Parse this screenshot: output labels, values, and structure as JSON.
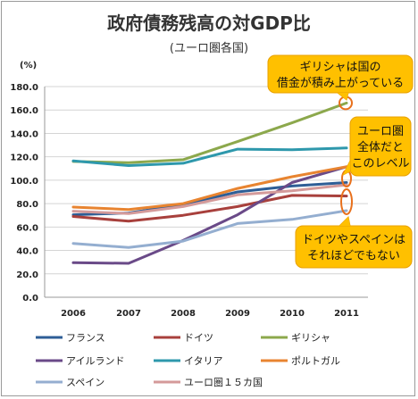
{
  "chart_data": {
    "type": "line",
    "title": "政府債務残高の対GDP比",
    "subtitle": "(ユーロ圏各国)",
    "ylabel": "(%)",
    "ylim": [
      0,
      180
    ],
    "yticks": [
      "0.0",
      "20.0",
      "40.0",
      "60.0",
      "80.0",
      "100.0",
      "120.0",
      "140.0",
      "160.0",
      "180.0"
    ],
    "categories": [
      "2006",
      "2007",
      "2008",
      "2009",
      "2010",
      "2011"
    ],
    "grid": true,
    "legend_position": "bottom",
    "series": [
      {
        "name": "フランス",
        "color": "#2e5e96",
        "values": [
          70.5,
          72.0,
          79.0,
          90.0,
          95.0,
          98.0
        ]
      },
      {
        "name": "ドイツ",
        "color": "#a8403c",
        "values": [
          69.0,
          65.0,
          70.0,
          77.5,
          87.0,
          86.5
        ]
      },
      {
        "name": "ギリシャ",
        "color": "#8ca84c",
        "values": [
          116.0,
          115.0,
          117.5,
          133.0,
          149.0,
          166.0
        ]
      },
      {
        "name": "アイルランド",
        "color": "#6a4a88",
        "values": [
          29.5,
          29.0,
          48.5,
          70.5,
          98.0,
          111.5
        ]
      },
      {
        "name": "イタリア",
        "color": "#2e98ac",
        "values": [
          116.5,
          112.5,
          114.5,
          126.5,
          126.0,
          127.5
        ]
      },
      {
        "name": "ポルトガル",
        "color": "#e88430",
        "values": [
          77.0,
          75.0,
          80.0,
          93.0,
          103.0,
          111.5
        ]
      },
      {
        "name": "スペイン",
        "color": "#94aed0",
        "values": [
          46.0,
          42.5,
          48.0,
          63.0,
          66.5,
          74.0
        ]
      },
      {
        "name": "ユーロ圏１５カ国",
        "color": "#d49a9a",
        "values": [
          73.5,
          71.5,
          77.5,
          87.5,
          91.0,
          96.0
        ]
      }
    ],
    "annotations": [
      {
        "id": "greece",
        "lines": [
          "ギリシャは国の",
          "借金が積み上がっている"
        ]
      },
      {
        "id": "eurozone",
        "lines": [
          "ユーロ圏",
          "全体だと",
          "このレベル"
        ]
      },
      {
        "id": "germany-spain",
        "lines": [
          "ドイツやスペインは",
          "それほどでもない"
        ]
      }
    ]
  },
  "colors": {
    "callout_fill": "#ffc000",
    "callout_border": "#e8a000",
    "highlight_ring": "#e8701c",
    "grid": "#d4d4d4"
  }
}
